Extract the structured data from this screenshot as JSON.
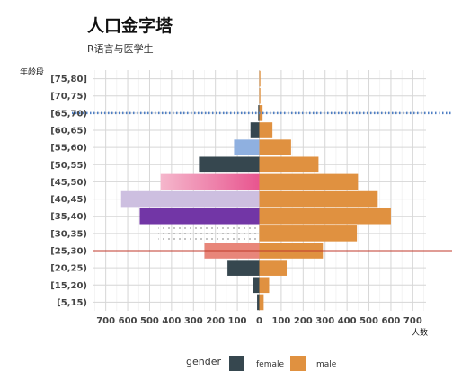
{
  "chart_data": {
    "type": "bar",
    "title": "人口金字塔",
    "subtitle": "R语言与医学生",
    "ylabel": "年龄段",
    "xlabel": "人数",
    "categories": [
      "[5,15)",
      "[15,20)",
      "[20,25)",
      "[25,30)",
      "[30,35)",
      "[35,40)",
      "[40,45)",
      "[45,50)",
      "[50,55)",
      "[55,60)",
      "[60,65)",
      "[65,70)",
      "[70,75)",
      "[75,80]"
    ],
    "series": [
      {
        "name": "female",
        "values": [
          -10,
          -30,
          -145,
          -250,
          -460,
          -545,
          -630,
          -450,
          -275,
          -115,
          -40,
          -5,
          0,
          0
        ],
        "color": "#36474f"
      },
      {
        "name": "male",
        "values": [
          20,
          45,
          125,
          290,
          445,
          600,
          540,
          450,
          270,
          145,
          60,
          15,
          5,
          5
        ],
        "color": "#e09140"
      }
    ],
    "xlim": [
      -760,
      760
    ],
    "xticks": [
      -700,
      -600,
      -500,
      -400,
      -300,
      -200,
      -100,
      0,
      100,
      200,
      300,
      400,
      500,
      600,
      700
    ],
    "xtick_labels": [
      "700",
      "600",
      "500",
      "400",
      "300",
      "200",
      "100",
      "0",
      "100",
      "200",
      "300",
      "400",
      "500",
      "600",
      "700"
    ],
    "bar_fills": {
      "[25,30)": "#e8867a",
      "[30,35)": "dotted",
      "[35,40)": "#7236a6",
      "[40,45)": "#cdbfe0",
      "[45,50)": "pink-gradient",
      "[55,60)": "#8fb0e0"
    },
    "reference_lines": [
      {
        "category": "[65,70)",
        "style": "dotted",
        "color": "#4f7fc4"
      },
      {
        "category": "[25,30)",
        "style": "solid",
        "color": "#c0392b"
      }
    ],
    "grid": true,
    "legend": {
      "title": "gender",
      "position": "bottom"
    }
  }
}
